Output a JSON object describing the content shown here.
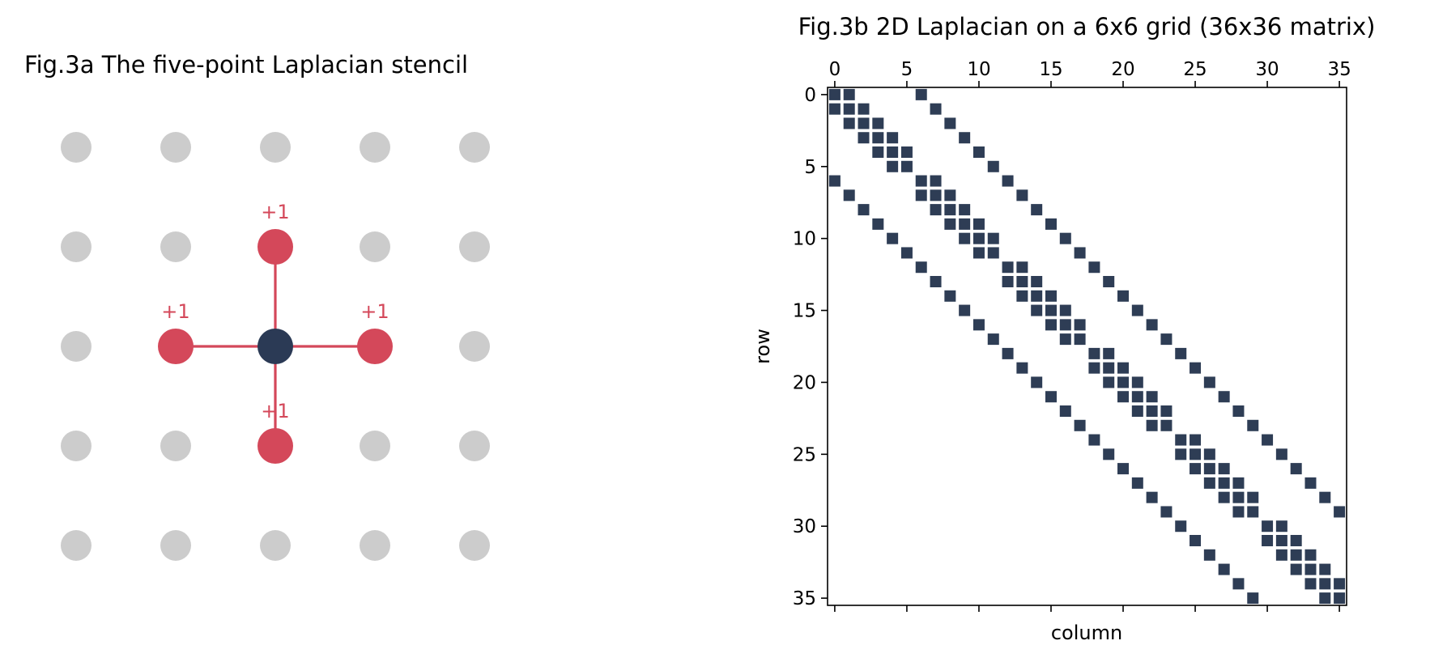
{
  "figure_a": {
    "title": "Fig.3a The five-point Laplacian stencil",
    "grid_size": 5,
    "center": {
      "col": 2,
      "row": 2
    },
    "neighbors": [
      {
        "col": 2,
        "row": 1,
        "label": "+1"
      },
      {
        "col": 1,
        "row": 2,
        "label": "+1"
      },
      {
        "col": 3,
        "row": 2,
        "label": "+1"
      },
      {
        "col": 2,
        "row": 3,
        "label": "+1"
      }
    ],
    "colors": {
      "grid_node": "#cccccc",
      "neighbor": "#d4485a",
      "center": "#2b3a55",
      "arrow": "#d4485a"
    }
  },
  "chart_data": {
    "type": "heatmap",
    "title": "Fig.3b 2D Laplacian on a 6x6 grid (36x36 matrix)",
    "xlabel": "column",
    "ylabel": "row",
    "n": 36,
    "grid_n": 6,
    "xticks": [
      0,
      5,
      10,
      15,
      20,
      25,
      30,
      35
    ],
    "yticks": [
      0,
      5,
      10,
      15,
      20,
      25,
      30,
      35
    ],
    "xlim": [
      -0.5,
      35.5
    ],
    "ylim": [
      35.5,
      -0.5
    ],
    "nonzero_rule": "A[i][j] != 0 when i == j, |i-j| == 1 within the same grid row, or |i-j| == 6",
    "marker_color": "#2e3d55"
  }
}
